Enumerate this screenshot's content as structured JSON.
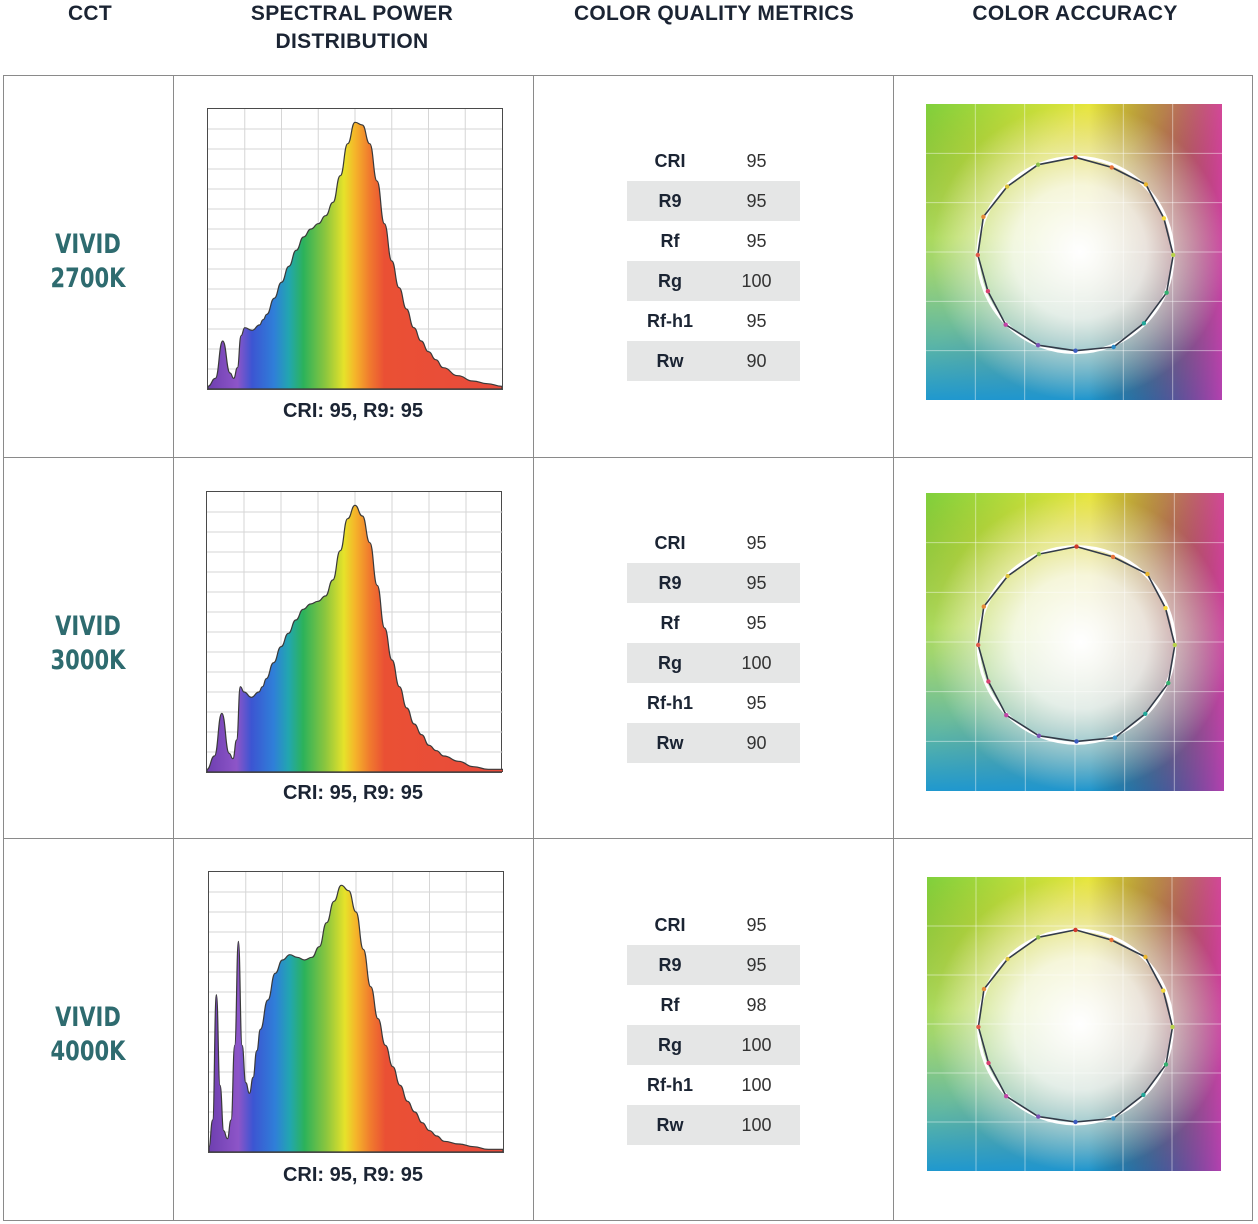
{
  "headers": {
    "cct": "CCT",
    "spd_line1": "SPECTRAL POWER",
    "spd_line2": "DISTRIBUTION",
    "metrics": "COLOR QUALITY METRICS",
    "accuracy": "COLOR ACCURACY"
  },
  "rows": [
    {
      "name_line1": "VIVID",
      "name_line2": "2700K",
      "caption": "CRI: 95, R9: 95",
      "metrics": [
        {
          "label": "CRI",
          "value": "95"
        },
        {
          "label": "R9",
          "value": "95"
        },
        {
          "label": "Rf",
          "value": "95"
        },
        {
          "label": "Rg",
          "value": "100"
        },
        {
          "label": "Rf-h1",
          "value": "95"
        },
        {
          "label": "Rw",
          "value": "90"
        }
      ]
    },
    {
      "name_line1": "VIVID",
      "name_line2": "3000K",
      "caption": "CRI: 95, R9: 95",
      "metrics": [
        {
          "label": "CRI",
          "value": "95"
        },
        {
          "label": "R9",
          "value": "95"
        },
        {
          "label": "Rf",
          "value": "95"
        },
        {
          "label": "Rg",
          "value": "100"
        },
        {
          "label": "Rf-h1",
          "value": "95"
        },
        {
          "label": "Rw",
          "value": "90"
        }
      ]
    },
    {
      "name_line1": "VIVID",
      "name_line2": "4000K",
      "caption": "CRI: 95, R9: 95",
      "metrics": [
        {
          "label": "CRI",
          "value": "95"
        },
        {
          "label": "R9",
          "value": "95"
        },
        {
          "label": "Rf",
          "value": "98"
        },
        {
          "label": "Rg",
          "value": "100"
        },
        {
          "label": "Rf-h1",
          "value": "100"
        },
        {
          "label": "Rw",
          "value": "100"
        }
      ]
    }
  ],
  "chart_data": [
    {
      "type": "area",
      "title": "",
      "xlabel": "",
      "ylabel": "",
      "xlim": [
        380,
        780
      ],
      "ylim": [
        0,
        1.05
      ],
      "grid": true,
      "x": [
        380,
        390,
        400,
        410,
        415,
        420,
        425,
        430,
        440,
        450,
        455,
        460,
        470,
        480,
        490,
        500,
        510,
        520,
        530,
        540,
        550,
        560,
        570,
        580,
        590,
        600,
        610,
        620,
        630,
        640,
        650,
        660,
        670,
        680,
        690,
        700,
        720,
        740,
        760,
        780
      ],
      "values": [
        0.01,
        0.04,
        0.18,
        0.06,
        0.04,
        0.08,
        0.2,
        0.23,
        0.22,
        0.24,
        0.26,
        0.28,
        0.34,
        0.4,
        0.46,
        0.52,
        0.57,
        0.6,
        0.62,
        0.65,
        0.7,
        0.8,
        0.92,
        1.0,
        0.99,
        0.92,
        0.78,
        0.62,
        0.48,
        0.38,
        0.3,
        0.23,
        0.18,
        0.14,
        0.11,
        0.08,
        0.05,
        0.03,
        0.02,
        0.01
      ]
    },
    {
      "type": "area",
      "title": "",
      "xlabel": "",
      "ylabel": "",
      "xlim": [
        380,
        780
      ],
      "ylim": [
        0,
        1.05
      ],
      "grid": true,
      "x": [
        380,
        390,
        400,
        410,
        415,
        420,
        425,
        430,
        440,
        450,
        455,
        460,
        470,
        480,
        490,
        500,
        510,
        520,
        530,
        540,
        550,
        560,
        570,
        580,
        590,
        600,
        610,
        620,
        630,
        640,
        650,
        660,
        670,
        680,
        690,
        700,
        720,
        740,
        760,
        780
      ],
      "values": [
        0.01,
        0.06,
        0.22,
        0.07,
        0.05,
        0.12,
        0.32,
        0.3,
        0.28,
        0.3,
        0.32,
        0.35,
        0.41,
        0.47,
        0.52,
        0.57,
        0.61,
        0.63,
        0.64,
        0.66,
        0.72,
        0.83,
        0.95,
        1.0,
        0.96,
        0.86,
        0.7,
        0.54,
        0.42,
        0.32,
        0.24,
        0.18,
        0.14,
        0.1,
        0.08,
        0.06,
        0.04,
        0.02,
        0.01,
        0.01
      ]
    },
    {
      "type": "area",
      "title": "",
      "xlabel": "",
      "ylabel": "",
      "xlim": [
        380,
        780
      ],
      "ylim": [
        0,
        1.05
      ],
      "grid": true,
      "x": [
        380,
        385,
        390,
        395,
        400,
        405,
        410,
        415,
        420,
        425,
        430,
        435,
        440,
        445,
        450,
        460,
        470,
        480,
        490,
        500,
        510,
        520,
        530,
        540,
        550,
        560,
        570,
        580,
        590,
        600,
        610,
        620,
        630,
        640,
        650,
        660,
        670,
        680,
        690,
        700,
        720,
        740,
        760,
        780
      ],
      "values": [
        0.02,
        0.12,
        0.59,
        0.25,
        0.08,
        0.05,
        0.12,
        0.4,
        0.79,
        0.4,
        0.26,
        0.22,
        0.28,
        0.38,
        0.46,
        0.57,
        0.67,
        0.72,
        0.74,
        0.73,
        0.72,
        0.73,
        0.77,
        0.86,
        0.94,
        1.0,
        0.98,
        0.9,
        0.76,
        0.62,
        0.5,
        0.4,
        0.32,
        0.25,
        0.19,
        0.15,
        0.11,
        0.08,
        0.06,
        0.04,
        0.03,
        0.02,
        0.01,
        0.01
      ]
    }
  ],
  "color_accuracy": [
    {
      "marker_colors": [
        "#d23a2a",
        "#e8733a",
        "#e9b52e",
        "#f5d93a",
        "#b8d24a",
        "#34b06f",
        "#21a89a",
        "#2a8ac7",
        "#3b5cc1",
        "#7a4fb5",
        "#c244a6",
        "#d8416f",
        "#e05a4a",
        "#e48a3a",
        "#dcc23a",
        "#8ec34a"
      ]
    },
    {
      "marker_colors": [
        "#d23a2a",
        "#e8733a",
        "#e9b52e",
        "#f5d93a",
        "#b8d24a",
        "#34b06f",
        "#21a89a",
        "#2a8ac7",
        "#3b5cc1",
        "#7a4fb5",
        "#c244a6",
        "#d8416f",
        "#e05a4a",
        "#e48a3a",
        "#dcc23a",
        "#8ec34a"
      ]
    },
    {
      "marker_colors": [
        "#d23a2a",
        "#e8733a",
        "#e9b52e",
        "#f5d93a",
        "#b8d24a",
        "#34b06f",
        "#21a89a",
        "#2a8ac7",
        "#3b5cc1",
        "#7a4fb5",
        "#c244a6",
        "#d8416f",
        "#e05a4a",
        "#e48a3a",
        "#dcc23a",
        "#8ec34a"
      ]
    }
  ]
}
